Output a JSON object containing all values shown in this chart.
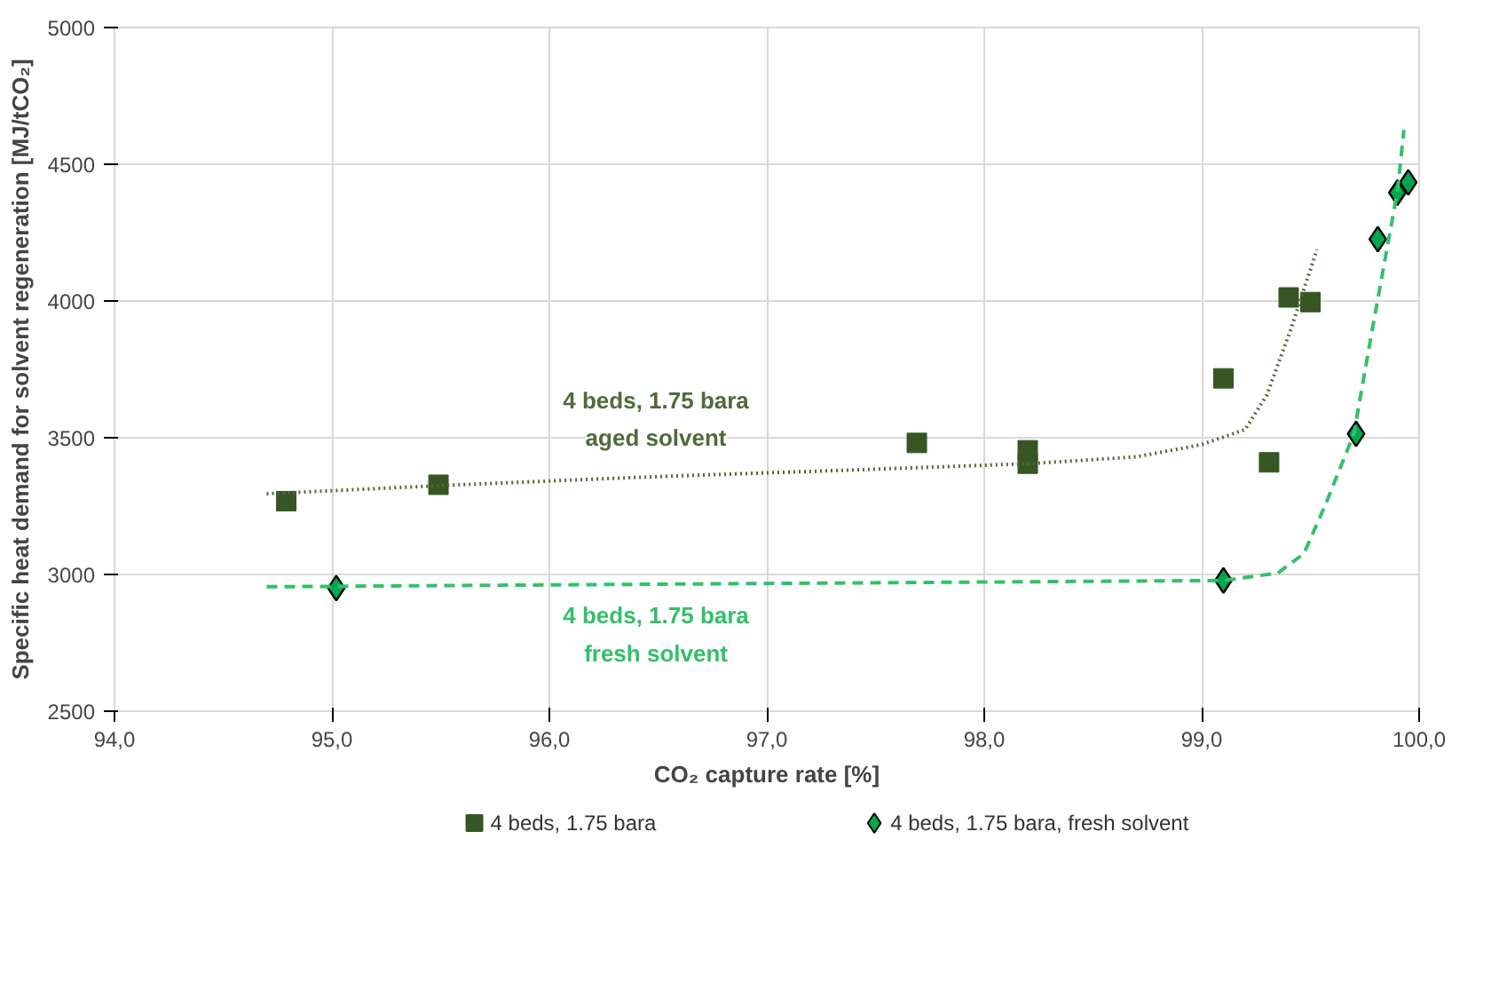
{
  "chart_data": {
    "type": "scatter",
    "xlabel": "CO₂ capture rate [%]",
    "ylabel": "Specific heat demand for solvent regeneration [MJ/tCO₂]",
    "xlim": [
      94,
      100
    ],
    "xticks": [
      {
        "value": 94,
        "label": "94,0"
      },
      {
        "value": 95,
        "label": "95,0"
      },
      {
        "value": 96,
        "label": "96,0"
      },
      {
        "value": 97,
        "label": "97,0"
      },
      {
        "value": 98,
        "label": "98,0"
      },
      {
        "value": 99,
        "label": "99,0"
      },
      {
        "value": 100,
        "label": "100,0"
      }
    ],
    "ylim": [
      2500,
      5000
    ],
    "yticks": [
      2500,
      3000,
      3500,
      4000,
      4500,
      5000
    ],
    "grid": true,
    "legend": "bottom",
    "series": [
      {
        "name": "4 beds, 1.75 bara",
        "marker": "square",
        "color": "#375623",
        "x": [
          94.79,
          95.49,
          97.69,
          98.2,
          98.2,
          99.1,
          99.31,
          99.4,
          99.5
        ],
        "values": [
          3268,
          3328,
          3481,
          3454,
          3405,
          3717,
          3410,
          4013,
          3996
        ]
      },
      {
        "name": "4 beds, 1.75 bara, fresh solvent",
        "marker": "diamond",
        "color": "#00a650",
        "x": [
          95.02,
          99.1,
          99.71,
          99.81,
          99.9,
          99.95
        ],
        "values": [
          2950,
          2978,
          3514,
          4226,
          4396,
          4434
        ]
      },
      {
        "type": "line",
        "line_style": "dotted",
        "color": "#4f6b3a",
        "x": [
          94.7,
          95.5,
          96.5,
          97.5,
          98.2,
          98.7,
          99.0,
          99.2,
          99.3,
          99.41,
          99.53
        ],
        "values": [
          3295,
          3325,
          3358,
          3385,
          3405,
          3430,
          3475,
          3530,
          3657,
          3897,
          4188
        ]
      },
      {
        "type": "line",
        "line_style": "dashed",
        "color": "#33c06a",
        "x": [
          94.7,
          99.1,
          99.35,
          99.47,
          99.57,
          99.7,
          99.78,
          99.9,
          99.93
        ],
        "values": [
          2955,
          2978,
          3005,
          3076,
          3257,
          3514,
          3876,
          4400,
          4626
        ]
      }
    ],
    "annotations": [
      "4 beds, 1.75 bara",
      "aged solvent",
      "4 beds, 1.75 bara",
      "fresh solvent"
    ]
  }
}
